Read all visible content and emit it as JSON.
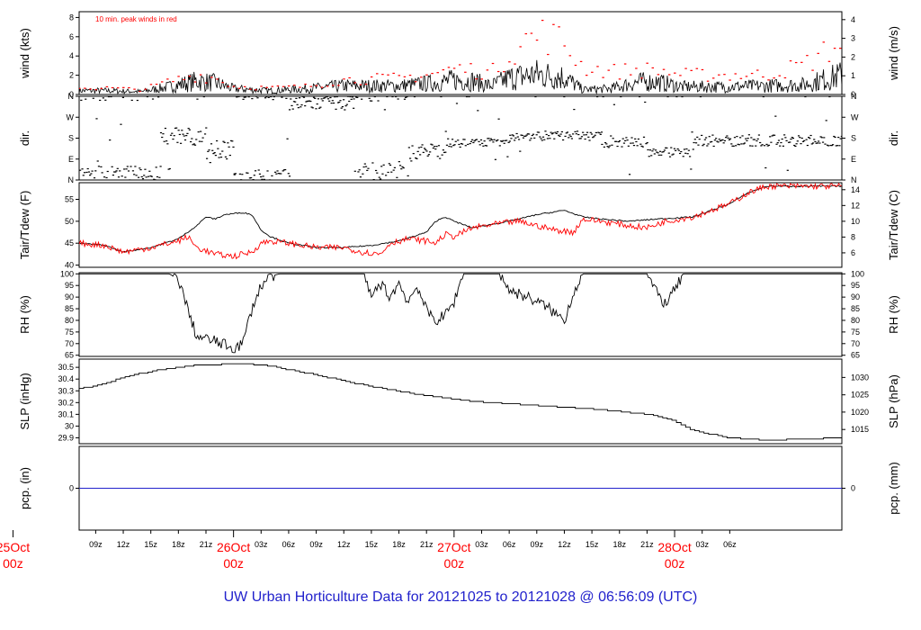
{
  "colors": {
    "black": "#000000",
    "red": "#ff0000",
    "blue": "#2222cc"
  },
  "footer_title": "UW Urban Horticulture Data for 20121025  to  20121028 @ 06:56:09  (UTC)",
  "time_axis": {
    "range_hours": [
      -4.8,
      78.2
    ],
    "hour_ticks": [
      {
        "h": -3,
        "label": "09z"
      },
      {
        "h": 0,
        "label": "12z"
      },
      {
        "h": 3,
        "label": "15z"
      },
      {
        "h": 6,
        "label": "18z"
      },
      {
        "h": 9,
        "label": "21z"
      },
      {
        "h": 15,
        "label": "03z"
      },
      {
        "h": 18,
        "label": "06z"
      },
      {
        "h": 21,
        "label": "09z"
      },
      {
        "h": 24,
        "label": "12z"
      },
      {
        "h": 27,
        "label": "15z"
      },
      {
        "h": 30,
        "label": "18z"
      },
      {
        "h": 33,
        "label": "21z"
      },
      {
        "h": 39,
        "label": "03z"
      },
      {
        "h": 42,
        "label": "06z"
      },
      {
        "h": 45,
        "label": "09z"
      },
      {
        "h": 48,
        "label": "12z"
      },
      {
        "h": 51,
        "label": "15z"
      },
      {
        "h": 54,
        "label": "18z"
      },
      {
        "h": 57,
        "label": "21z"
      },
      {
        "h": 63,
        "label": "03z"
      },
      {
        "h": 66,
        "label": "06z"
      }
    ],
    "day_ticks": [
      {
        "h": -12,
        "label": "25Oct",
        "sub": "00z"
      },
      {
        "h": 12,
        "label": "26Oct",
        "sub": "00z"
      },
      {
        "h": 36,
        "label": "27Oct",
        "sub": "00z"
      },
      {
        "h": 60,
        "label": "28Oct",
        "sub": "00z"
      }
    ]
  },
  "chart_data": [
    {
      "type": "line",
      "name": "wind",
      "ylabel": "wind (kts)",
      "ylabel_right": "wind (m/s)",
      "ylim": [
        0,
        8.6
      ],
      "yticks": [
        0,
        2,
        4,
        6,
        8
      ],
      "right_ticks": [
        {
          "v": 0,
          "label": "0"
        },
        {
          "v": 1.944,
          "label": "1"
        },
        {
          "v": 3.888,
          "label": "2"
        },
        {
          "v": 5.832,
          "label": "3"
        },
        {
          "v": 7.776,
          "label": "4"
        }
      ],
      "annotation": "10 min. peak winds in red",
      "mean_profile": [
        [
          -4.8,
          0.4
        ],
        [
          -2,
          0.4
        ],
        [
          2,
          0.3
        ],
        [
          5,
          0.8
        ],
        [
          8,
          1.4
        ],
        [
          10,
          1.2
        ],
        [
          12,
          0.6
        ],
        [
          16,
          0.4
        ],
        [
          20,
          0.6
        ],
        [
          24,
          0.9
        ],
        [
          30,
          0.9
        ],
        [
          34,
          1.2
        ],
        [
          36,
          1.5
        ],
        [
          38,
          1.4
        ],
        [
          40,
          0.9
        ],
        [
          42,
          1.7
        ],
        [
          45,
          2.1
        ],
        [
          48,
          1.8
        ],
        [
          50,
          0.5
        ],
        [
          53,
          0.6
        ],
        [
          56,
          1.3
        ],
        [
          58,
          1.3
        ],
        [
          61,
          0.8
        ],
        [
          65,
          0.8
        ],
        [
          70,
          0.9
        ],
        [
          74,
          1.0
        ],
        [
          78.2,
          2.0
        ]
      ],
      "peak_profile": [
        [
          -4.8,
          0.8
        ],
        [
          -2,
          0.8
        ],
        [
          2,
          0.6
        ],
        [
          5,
          1.6
        ],
        [
          8,
          2.4
        ],
        [
          10,
          2.0
        ],
        [
          12,
          1.0
        ],
        [
          16,
          0.8
        ],
        [
          20,
          1.0
        ],
        [
          24,
          1.8
        ],
        [
          30,
          2.0
        ],
        [
          34,
          2.6
        ],
        [
          36,
          3.2
        ],
        [
          38,
          3.0
        ],
        [
          40,
          2.6
        ],
        [
          42,
          5.0
        ],
        [
          44,
          6.8
        ],
        [
          46,
          7.4
        ],
        [
          48,
          6.2
        ],
        [
          50,
          3.4
        ],
        [
          53,
          2.8
        ],
        [
          56,
          3.0
        ],
        [
          58,
          3.0
        ],
        [
          61,
          2.4
        ],
        [
          64,
          2.4
        ],
        [
          70,
          2.4
        ],
        [
          74,
          3.6
        ],
        [
          78.2,
          6.4
        ]
      ]
    },
    {
      "type": "scatter",
      "name": "dir.",
      "ylabel": "dir.",
      "ylabel_right": "dir.",
      "ylim": [
        0,
        360
      ],
      "yticks": [
        {
          "v": 0,
          "label": "N"
        },
        {
          "v": 90,
          "label": "E"
        },
        {
          "v": 180,
          "label": "S"
        },
        {
          "v": 270,
          "label": "W"
        },
        {
          "v": 360,
          "label": "N"
        }
      ],
      "segments": [
        {
          "from": -4.8,
          "to": 4,
          "dir": 20,
          "spread": 40
        },
        {
          "from": 4,
          "to": 9,
          "dir": 190,
          "spread": 40
        },
        {
          "from": 9,
          "to": 12,
          "dir": 130,
          "spread": 40
        },
        {
          "from": 12,
          "to": 18,
          "dir": 15,
          "spread": 30
        },
        {
          "from": 18,
          "to": 25,
          "dir": 330,
          "spread": 30
        },
        {
          "from": 25,
          "to": 31,
          "dir": 30,
          "spread": 50
        },
        {
          "from": 31,
          "to": 35,
          "dir": 120,
          "spread": 40
        },
        {
          "from": 35,
          "to": 42,
          "dir": 160,
          "spread": 20
        },
        {
          "from": 42,
          "to": 52,
          "dir": 190,
          "spread": 20
        },
        {
          "from": 52,
          "to": 57,
          "dir": 165,
          "spread": 25
        },
        {
          "from": 57,
          "to": 62,
          "dir": 120,
          "spread": 20
        },
        {
          "from": 62,
          "to": 78.2,
          "dir": 170,
          "spread": 25
        }
      ]
    },
    {
      "type": "line",
      "name": "Tair/Tdew",
      "ylabel": "Tair/Tdew (F)",
      "ylabel_right": "Tair/Tdew (C)",
      "ylim": [
        39.5,
        58.8
      ],
      "yticks": [
        40,
        45,
        50,
        55
      ],
      "right_ticks": [
        {
          "v": 42.8,
          "label": "6"
        },
        {
          "v": 46.4,
          "label": "8"
        },
        {
          "v": 50,
          "label": "10"
        },
        {
          "v": 53.6,
          "label": "12"
        },
        {
          "v": 57.2,
          "label": "14"
        }
      ],
      "series": [
        {
          "name": "Tair",
          "color": "#000000",
          "values": [
            [
              -4.8,
              45
            ],
            [
              -2,
              44.5
            ],
            [
              0,
              43
            ],
            [
              3,
              44
            ],
            [
              6,
              46
            ],
            [
              8,
              49
            ],
            [
              9,
              51
            ],
            [
              10,
              50.5
            ],
            [
              11,
              51.5
            ],
            [
              13,
              52
            ],
            [
              14,
              51.5
            ],
            [
              15,
              48
            ],
            [
              16,
              46.5
            ],
            [
              18,
              45
            ],
            [
              21,
              44
            ],
            [
              24,
              44
            ],
            [
              27,
              44.5
            ],
            [
              30,
              45.5
            ],
            [
              33,
              47.5
            ],
            [
              34,
              50
            ],
            [
              35,
              51
            ],
            [
              36,
              50
            ],
            [
              38,
              48.5
            ],
            [
              42,
              50
            ],
            [
              45,
              51.5
            ],
            [
              48,
              52.5
            ],
            [
              50,
              51
            ],
            [
              52,
              50.5
            ],
            [
              55,
              50
            ],
            [
              58,
              50.5
            ],
            [
              62,
              51
            ],
            [
              66,
              54
            ],
            [
              68,
              56.5
            ],
            [
              70,
              58
            ],
            [
              78.2,
              58
            ]
          ]
        },
        {
          "name": "Tdew",
          "color": "#ff0000",
          "values": [
            [
              -4.8,
              45
            ],
            [
              -2,
              44.5
            ],
            [
              0,
              43
            ],
            [
              3,
              44
            ],
            [
              6,
              45.5
            ],
            [
              7,
              46.5
            ],
            [
              8,
              44
            ],
            [
              10,
              42.5
            ],
            [
              12,
              42
            ],
            [
              14,
              43
            ],
            [
              15,
              45
            ],
            [
              16,
              45.5
            ],
            [
              18,
              45
            ],
            [
              21,
              44
            ],
            [
              24,
              44
            ],
            [
              26,
              43
            ],
            [
              28,
              42.5
            ],
            [
              29,
              45
            ],
            [
              31,
              46
            ],
            [
              33,
              45.5
            ],
            [
              34,
              45
            ],
            [
              35,
              47
            ],
            [
              36,
              46.5
            ],
            [
              38,
              48.5
            ],
            [
              41,
              49.5
            ],
            [
              43,
              50
            ],
            [
              45,
              49
            ],
            [
              47,
              48
            ],
            [
              49,
              47.5
            ],
            [
              50,
              50.5
            ],
            [
              52,
              50
            ],
            [
              55,
              49
            ],
            [
              57,
              48.5
            ],
            [
              59,
              50
            ],
            [
              62,
              51
            ],
            [
              66,
              54
            ],
            [
              68,
              56.5
            ],
            [
              70,
              58
            ],
            [
              78.2,
              58
            ]
          ]
        }
      ]
    },
    {
      "type": "line",
      "name": "RH",
      "ylabel": "RH (%)",
      "ylabel_right": "RH (%)",
      "ylim": [
        64.5,
        100.5
      ],
      "yticks": [
        65,
        70,
        75,
        80,
        85,
        90,
        95,
        100
      ],
      "values": [
        [
          -4.8,
          100
        ],
        [
          5,
          100
        ],
        [
          6,
          98
        ],
        [
          7,
          85
        ],
        [
          8,
          73
        ],
        [
          10,
          71
        ],
        [
          12,
          68
        ],
        [
          13,
          70
        ],
        [
          14,
          85
        ],
        [
          15,
          95
        ],
        [
          16,
          99
        ],
        [
          17,
          100
        ],
        [
          26,
          100
        ],
        [
          27,
          90
        ],
        [
          28,
          96
        ],
        [
          29,
          90
        ],
        [
          30,
          96
        ],
        [
          31,
          88
        ],
        [
          32,
          95
        ],
        [
          33,
          84
        ],
        [
          34,
          80
        ],
        [
          35,
          82
        ],
        [
          36,
          88
        ],
        [
          37,
          100
        ],
        [
          41,
          100
        ],
        [
          42,
          93
        ],
        [
          44,
          90
        ],
        [
          46,
          86
        ],
        [
          48,
          80
        ],
        [
          49,
          92
        ],
        [
          50,
          100
        ],
        [
          57,
          100
        ],
        [
          58,
          92
        ],
        [
          59,
          87
        ],
        [
          60,
          93
        ],
        [
          61,
          100
        ],
        [
          78.2,
          100
        ]
      ]
    },
    {
      "type": "line",
      "name": "SLP",
      "ylabel": "SLP (inHg)",
      "ylabel_right": "SLP (hPa)",
      "ylim": [
        29.85,
        30.57
      ],
      "yticks": [
        29.9,
        30.0,
        30.1,
        30.2,
        30.3,
        30.4,
        30.5
      ],
      "right_ticks": [
        {
          "v": 29.971,
          "label": "1015"
        },
        {
          "v": 30.119,
          "label": "1020"
        },
        {
          "v": 30.266,
          "label": "1025"
        },
        {
          "v": 30.414,
          "label": "1030"
        }
      ],
      "values": [
        [
          -4.8,
          30.32
        ],
        [
          -2,
          30.36
        ],
        [
          0,
          30.42
        ],
        [
          4,
          30.48
        ],
        [
          8,
          30.52
        ],
        [
          13,
          30.53
        ],
        [
          16,
          30.51
        ],
        [
          20,
          30.45
        ],
        [
          26,
          30.35
        ],
        [
          32,
          30.27
        ],
        [
          38,
          30.21
        ],
        [
          44,
          30.18
        ],
        [
          52,
          30.14
        ],
        [
          57,
          30.1
        ],
        [
          60,
          30.04
        ],
        [
          62,
          29.96
        ],
        [
          66,
          29.9
        ],
        [
          70,
          29.88
        ],
        [
          78.2,
          29.9
        ]
      ]
    },
    {
      "type": "line",
      "name": "pcp.",
      "ylabel": "pcp. (in)",
      "ylabel_right": "pcp. (mm)",
      "ylim": [
        -1,
        1
      ],
      "yticks": [
        {
          "v": 0,
          "label": "0"
        }
      ],
      "right_ticks": [
        {
          "v": 0,
          "label": "0"
        }
      ],
      "values": [
        [
          -4.8,
          0
        ],
        [
          78.2,
          0
        ]
      ]
    }
  ]
}
